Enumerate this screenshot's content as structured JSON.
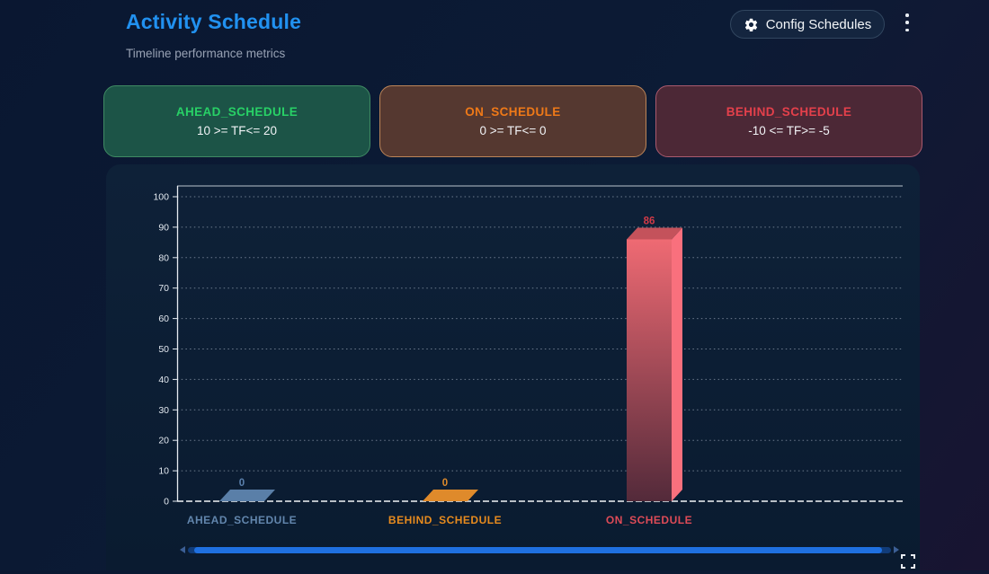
{
  "header": {
    "title": "Activity Schedule",
    "subtitle": "Timeline performance metrics",
    "config_button_label": "Config Schedules"
  },
  "legend_cards": [
    {
      "title": "AHEAD_SCHEDULE",
      "range": "10 >= TF<= 20",
      "title_color": "#28d166",
      "bg": "#1c5447",
      "border": "#3f8a63"
    },
    {
      "title": "ON_SCHEDULE",
      "range": "0 >= TF<= 0",
      "title_color": "#ef7918",
      "bg": "#553830",
      "border": "#bc8558"
    },
    {
      "title": "BEHIND_SCHEDULE",
      "range": "-10 <= TF>= -5",
      "title_color": "#e4404b",
      "bg": "#4c2836",
      "border": "#aa5a6e"
    }
  ],
  "chart_data": {
    "type": "bar",
    "style": "3d-column",
    "categories": [
      "AHEAD_SCHEDULE",
      "BEHIND_SCHEDULE",
      "ON_SCHEDULE"
    ],
    "values": [
      0,
      0,
      86
    ],
    "value_labels": [
      "0",
      "0",
      "86"
    ],
    "ylim": [
      0,
      100
    ],
    "ytick_step": 10,
    "grid": "dotted-horizontal",
    "legend_position": "none",
    "bar_colors": [
      {
        "base": "#5a7fa8",
        "dark": "#5a7fa8",
        "side": "#6c91b8",
        "top": "#5a7fa8"
      },
      {
        "base": "#df8a2b",
        "dark": "#df8a2b",
        "side": "#eda03f",
        "top": "#df8a2b"
      },
      {
        "base": "#ef6a73",
        "dark": "#532a3a",
        "side": "#f9707d",
        "top": "#c4525b"
      }
    ],
    "value_label_colors": [
      "#5b80ad",
      "#df8a2b",
      "#d23a47"
    ],
    "category_label_colors": [
      "#6286ad",
      "#e78b1e",
      "#de4b57"
    ],
    "axis_text_color": "#e3e9f0",
    "grid_color": "rgba(205,215,232,0.5)"
  },
  "colors": {
    "accent_blue": "#2191f0",
    "scrollbar_thumb": "#1f70e0",
    "scrollbar_track": "#113c79"
  }
}
